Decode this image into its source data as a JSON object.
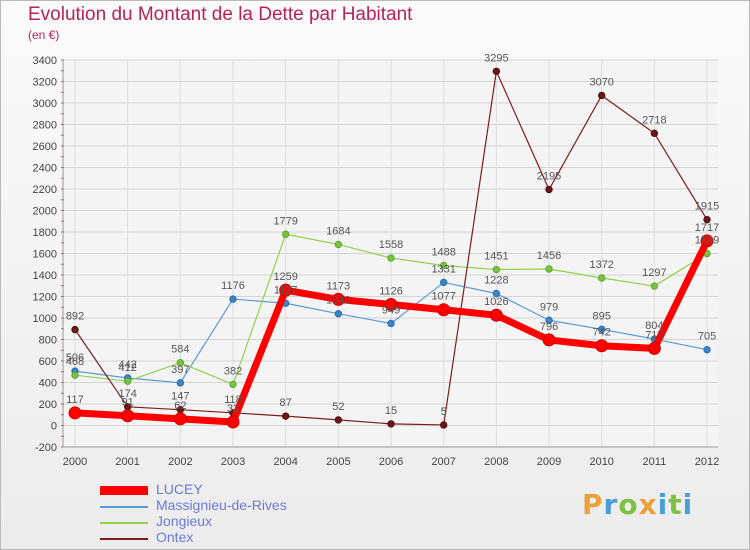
{
  "header": {
    "title": "Evolution du Montant de la Dette par Habitant",
    "subtitle": "(en €)"
  },
  "logo": {
    "text": "Proxiti",
    "letters": [
      "P",
      "r",
      "o",
      "x",
      "i",
      "t",
      "i"
    ]
  },
  "chart_data": {
    "type": "line",
    "title": "Evolution du Montant de la Dette par Habitant",
    "subtitle": "(en €)",
    "xlabel": "",
    "ylabel": "",
    "categories": [
      "2000",
      "2001",
      "2002",
      "2003",
      "2004",
      "2005",
      "2006",
      "2007",
      "2008",
      "2009",
      "2010",
      "2011",
      "2012"
    ],
    "ylim": [
      -200,
      3400
    ],
    "yticks": [
      -200,
      0,
      200,
      400,
      600,
      800,
      1000,
      1200,
      1400,
      1600,
      1800,
      2000,
      2200,
      2400,
      2600,
      2800,
      3000,
      3200,
      3400
    ],
    "grid": true,
    "legend_position": "bottom-left",
    "series": [
      {
        "name": "LUCEY",
        "color": "#ff0000",
        "values": [
          117,
          91,
          62,
          33,
          1259,
          1173,
          1126,
          1077,
          1026,
          796,
          742,
          717,
          1717
        ]
      },
      {
        "name": "Massignieu-de-Rives",
        "color": "#5b9bd5",
        "values": [
          506,
          442,
          397,
          1176,
          1137,
          1040,
          949,
          1331,
          1228,
          979,
          895,
          804,
          705
        ]
      },
      {
        "name": "Jongieux",
        "color": "#8fd14f",
        "values": [
          468,
          412,
          584,
          382,
          1779,
          1684,
          1558,
          1488,
          1451,
          1456,
          1372,
          1297,
          1599
        ]
      },
      {
        "name": "Ontex",
        "color": "#7b1e1e",
        "values": [
          892,
          174,
          147,
          118,
          87,
          52,
          15,
          5,
          3295,
          2195,
          3070,
          2718,
          1915
        ]
      }
    ]
  }
}
